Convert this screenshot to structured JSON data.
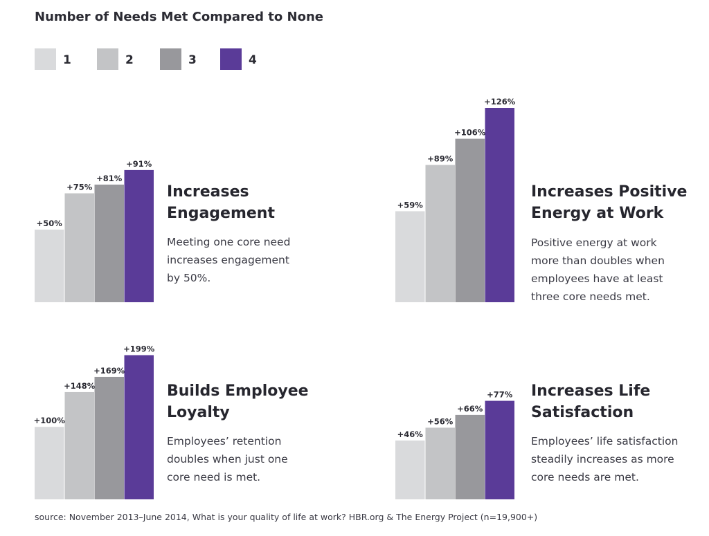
{
  "title": "Number of Needs Met Compared to None",
  "legend": [
    {
      "label": "1",
      "color": "#d9dadc"
    },
    {
      "label": "2",
      "color": "#c3c4c6"
    },
    {
      "label": "3",
      "color": "#98989c"
    },
    {
      "label": "4",
      "color": "#5a3b98"
    }
  ],
  "panels": [
    {
      "heading": "Increases\nEngagement",
      "description": "Meeting one core need\nincreases engagement\nby 50%."
    },
    {
      "heading": "Increases Positive\nEnergy at Work",
      "description": "Positive energy at work\nmore than doubles when\nemployees have at least\nthree core needs met."
    },
    {
      "heading": "Builds Employee\nLoyalty",
      "description": "Employees’ retention\ndoubles when just one\ncore need is met."
    },
    {
      "heading": "Increases Life\nSatisfaction",
      "description": "Employees’ life satisfaction\nsteadily increases as more\ncore needs are met."
    }
  ],
  "chart_data": [
    {
      "type": "bar",
      "categories": [
        "1",
        "2",
        "3",
        "4"
      ],
      "values": [
        50,
        75,
        81,
        91
      ],
      "labels": [
        "+50%",
        "+75%",
        "+81%",
        "+91%"
      ],
      "title": "Increases Engagement",
      "ylim": [
        0,
        100
      ]
    },
    {
      "type": "bar",
      "categories": [
        "1",
        "2",
        "3",
        "4"
      ],
      "values": [
        59,
        89,
        106,
        126
      ],
      "labels": [
        "+59%",
        "+89%",
        "+106%",
        "+126%"
      ],
      "title": "Increases Positive Energy at Work",
      "ylim": [
        0,
        126
      ]
    },
    {
      "type": "bar",
      "categories": [
        "1",
        "2",
        "3",
        "4"
      ],
      "values": [
        100,
        148,
        169,
        199
      ],
      "labels": [
        "+100%",
        "+148%",
        "+169%",
        "+199%"
      ],
      "title": "Builds Employee Loyalty",
      "ylim": [
        0,
        210
      ]
    },
    {
      "type": "bar",
      "categories": [
        "1",
        "2",
        "3",
        "4"
      ],
      "values": [
        46,
        56,
        66,
        77
      ],
      "labels": [
        "+46%",
        "+56%",
        "+66%",
        "+77%"
      ],
      "title": "Increases Life Satisfaction",
      "ylim": [
        0,
        100
      ]
    }
  ],
  "source": "source: November 2013–June 2014, What is your quality of life at work? HBR.org & The Energy Project (n=19,900+)"
}
